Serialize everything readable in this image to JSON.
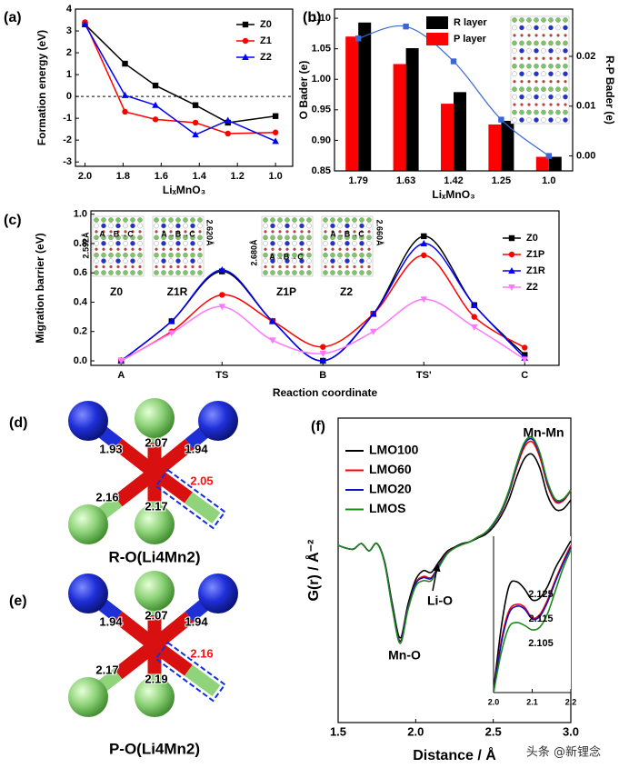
{
  "chart_data": [
    {
      "type": "line",
      "panel_label": "(a)",
      "xlabel": "LiₓMnO₃",
      "ylabel": "Formation energy (eV)",
      "x": [
        2.0,
        1.79,
        1.63,
        1.42,
        1.25,
        1.0
      ],
      "xlim": [
        2.05,
        0.91
      ],
      "xticks": [
        {
          "value": 2,
          "label": "2.0"
        },
        1.8,
        1.6,
        1.4,
        1.2,
        {
          "value": 1,
          "label": "1.0"
        }
      ],
      "ylim": [
        -3.2,
        4
      ],
      "yticks": [
        -3,
        -2,
        -1,
        0,
        1,
        2,
        3,
        4
      ],
      "hline": 0,
      "legend": "upper right",
      "series": [
        {
          "name": "Z0",
          "color": "#000000",
          "marker": "square",
          "values": [
            3.3,
            1.5,
            0.5,
            -0.4,
            -1.2,
            -0.9
          ]
        },
        {
          "name": "Z1",
          "color": "#ff0000",
          "marker": "circle",
          "values": [
            3.4,
            -0.7,
            -1.05,
            -1.2,
            -1.7,
            -1.65
          ]
        },
        {
          "name": "Z2",
          "color": "#0000ff",
          "marker": "triangle",
          "values": [
            3.3,
            0.05,
            -0.4,
            -1.75,
            -1.1,
            -2.05
          ]
        }
      ]
    },
    {
      "type": "bar",
      "panel_label": "(b)",
      "xlabel": "LiₓMnO₃",
      "ylabel": "O Bader (e)",
      "y2label": "R-P Bader (e)",
      "categories": [
        "1.79",
        "1.63",
        "1.42",
        "1.25",
        "1.0"
      ],
      "ylim": [
        0.85,
        1.115
      ],
      "yticks": [
        0.85,
        {
          "value": 0.9,
          "label": "0.90"
        },
        0.95,
        {
          "value": 1,
          "label": "1.00"
        },
        1.05,
        {
          "value": 1.1,
          "label": "1.10"
        }
      ],
      "y2lim": [
        -0.003,
        0.0295
      ],
      "y2ticks": [
        {
          "value": 0,
          "label": "0.00"
        },
        0.01,
        0.02
      ],
      "legend": "upper center",
      "series": [
        {
          "name": "R layer",
          "color": "#000000",
          "values": [
            1.093,
            1.051,
            0.979,
            0.932,
            0.873
          ]
        },
        {
          "name": "P layer",
          "color": "#ff0000",
          "values": [
            1.07,
            1.025,
            0.96,
            0.926,
            0.873
          ]
        },
        {
          "color": "#3a66d6",
          "axis": "y2",
          "marker": "square",
          "smooth": true,
          "values": [
            0.0236,
            0.026,
            0.019,
            0.0073,
            0.0
          ]
        }
      ]
    },
    {
      "type": "line",
      "panel_label": "(c)",
      "xlabel": "Reaction coordinate",
      "ylabel": "Migration barrier (eV)",
      "x": [
        0,
        0.5,
        1,
        1.5,
        2,
        2.5,
        3,
        3.5,
        4
      ],
      "xlim": [
        -0.3,
        4.34
      ],
      "xticks": [
        {
          "value": 0,
          "label": "A"
        },
        {
          "value": 1,
          "label": "TS"
        },
        {
          "value": 2,
          "label": "B"
        },
        {
          "value": 3,
          "label": "TS'"
        },
        {
          "value": 4,
          "label": "C"
        }
      ],
      "ylim": [
        -0.031,
        1.023
      ],
      "yticks": [
        {
          "value": 0,
          "label": "0.0"
        },
        0.2,
        0.4,
        0.6,
        0.8,
        {
          "value": 1,
          "label": "1.0"
        }
      ],
      "smooth": true,
      "legend": "upper right",
      "series": [
        {
          "name": "Z0",
          "color": "#000000",
          "marker": "square",
          "values": [
            0,
            0.27,
            0.61,
            0.27,
            0.0,
            0.32,
            0.85,
            0.38,
            0.04
          ]
        },
        {
          "name": "Z1P",
          "color": "#ff0000",
          "marker": "circle",
          "values": [
            0,
            0.2,
            0.45,
            0.27,
            0.095,
            0.32,
            0.72,
            0.3,
            0.09
          ]
        },
        {
          "name": "Z1R",
          "color": "#0000ff",
          "marker": "triangle",
          "values": [
            0,
            0.27,
            0.62,
            0.27,
            0.0,
            0.32,
            0.8,
            0.38,
            0.02
          ]
        },
        {
          "name": "Z2",
          "color": "#ff77ff",
          "marker": "triangle-down",
          "values": [
            0,
            0.19,
            0.37,
            0.14,
            0.05,
            0.2,
            0.42,
            0.23,
            0.01
          ]
        }
      ],
      "insets": [
        {
          "label": "Z0",
          "path": "A→B→C",
          "distance": "2.592Å"
        },
        {
          "label": "Z1R",
          "path": "A→B→C",
          "distance": "2.620Å"
        },
        {
          "label": "Z1P",
          "path": "A→B→C",
          "distance": "2.680Å"
        },
        {
          "label": "Z2",
          "path": "A→B→C",
          "distance": "2.660Å"
        }
      ]
    },
    {
      "type": "line",
      "panel_label": "(f)",
      "xlabel": "Distance / Å",
      "ylabel": "G(r) / Å⁻²",
      "x": [
        1.5,
        1.55,
        1.6,
        1.65,
        1.7,
        1.75,
        1.8,
        1.85,
        1.9,
        1.95,
        2.0,
        2.05,
        2.1,
        2.15,
        2.2,
        2.25,
        2.3,
        2.35,
        2.4,
        2.45,
        2.5,
        2.55,
        2.6,
        2.65,
        2.7,
        2.75,
        2.8,
        2.85,
        2.9,
        2.95,
        3.0
      ],
      "xlim": [
        1.5,
        3.0
      ],
      "xticks": [
        1.5,
        {
          "value": 2,
          "label": "2.0"
        },
        2.5,
        {
          "value": 3,
          "label": "3.0"
        }
      ],
      "ylim": [
        0,
        100
      ],
      "smooth": true,
      "legend": "upper left",
      "annotations": [
        "Mn-Mn",
        "Li-O",
        "Mn-O"
      ],
      "series": [
        {
          "name": "LMO100",
          "color": "#000000",
          "values": [
            58.2,
            57.3,
            57.0,
            58.8,
            56.4,
            58.8,
            52.8,
            38.8,
            27.8,
            38.8,
            46.9,
            49.9,
            49.3,
            52.8,
            56.1,
            57.6,
            58.8,
            59.4,
            60.6,
            61.8,
            64.2,
            67.8,
            73.1,
            80.6,
            86.6,
            88.1,
            83.6,
            74.6,
            70.1,
            70.1,
            73.1
          ]
        },
        {
          "name": "LMO60",
          "color": "#ff0000",
          "values": [
            58.2,
            57.3,
            57.0,
            58.8,
            56.4,
            58.8,
            52.5,
            38.0,
            26.8,
            37.8,
            45.8,
            48.0,
            47.6,
            51.8,
            55.6,
            57.3,
            58.5,
            59.4,
            60.9,
            62.4,
            65.1,
            69.0,
            75.2,
            83.6,
            90.4,
            92.2,
            87.2,
            77.9,
            72.5,
            72.8,
            76.1
          ]
        },
        {
          "name": "LMO20",
          "color": "#1010c0",
          "values": [
            58.2,
            57.3,
            57.0,
            58.8,
            56.4,
            58.8,
            52.4,
            37.8,
            26.6,
            37.6,
            45.6,
            47.6,
            47.3,
            51.6,
            55.4,
            57.3,
            58.5,
            59.4,
            60.9,
            62.4,
            65.1,
            69.3,
            75.5,
            84.2,
            91.3,
            93.1,
            88.1,
            78.5,
            73.1,
            73.1,
            76.4
          ]
        },
        {
          "name": "LMOS",
          "color": "#1a8a1a",
          "values": [
            58.2,
            57.3,
            57.0,
            58.8,
            56.4,
            58.8,
            52.2,
            37.3,
            26.0,
            37.0,
            44.8,
            46.6,
            46.6,
            51.0,
            55.2,
            57.3,
            58.5,
            59.4,
            60.9,
            62.4,
            65.4,
            69.6,
            76.1,
            84.8,
            91.9,
            93.7,
            88.7,
            79.1,
            73.4,
            73.4,
            76.4
          ]
        }
      ],
      "inset": {
        "x": [
          2.0,
          2.02,
          2.04,
          2.06,
          2.08,
          2.1,
          2.12,
          2.14,
          2.16,
          2.18,
          2.2
        ],
        "xlim": [
          2.0,
          2.2
        ],
        "xticks": [
          {
            "value": 2,
            "label": "2.0"
          },
          2.1,
          2.2
        ],
        "ylim": [
          0,
          100
        ],
        "annotations": [
          "2.125",
          "2.115",
          "2.105"
        ],
        "series": [
          {
            "values": [
              1.2,
              41.9,
              68.0,
              70.9,
              66.3,
              59.3,
              60.5,
              68.0,
              79.7,
              88.4,
              97.1
            ]
          },
          {
            "values": [
              0,
              33.1,
              52.3,
              56.4,
              54.7,
              47.7,
              50.0,
              59.3,
              72.1,
              83.7,
              94.2
            ]
          },
          {
            "values": [
              0,
              31.4,
              50.6,
              55.2,
              53.5,
              47.1,
              48.8,
              58.1,
              70.9,
              82.6,
              93.0
            ]
          },
          {
            "values": [
              0,
              25.6,
              41.9,
              44.8,
              43.0,
              40.1,
              41.9,
              50.6,
              65.1,
              79.7,
              91.3
            ]
          }
        ]
      }
    }
  ],
  "diagrams": [
    {
      "panel_label": "(d)",
      "caption": "R-O(Li4Mn2)",
      "bond_lengths": [
        1.93,
        2.07,
        1.94,
        2.16,
        2.17
      ],
      "highlighted_bond_length": 2.05
    },
    {
      "panel_label": "(e)",
      "caption": "P-O(Li4Mn2)",
      "bond_lengths": [
        1.94,
        2.07,
        1.94,
        2.17,
        2.19
      ],
      "highlighted_bond_length": 2.16
    }
  ],
  "watermark": "头条 @新锂念"
}
